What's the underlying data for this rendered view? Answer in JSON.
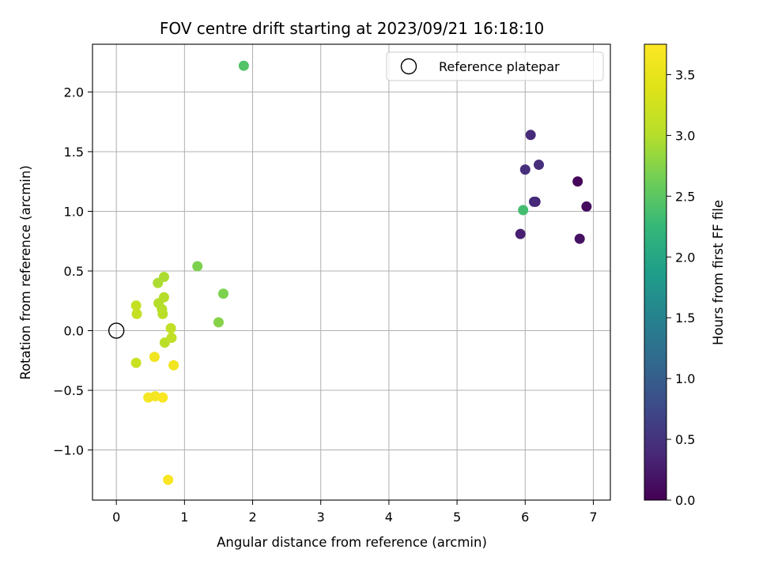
{
  "chart_data": {
    "type": "scatter",
    "title": "FOV centre drift starting at 2023/09/21 16:18:10",
    "xlabel": "Angular distance from reference (arcmin)",
    "ylabel": "Rotation from reference (arcmin)",
    "xlim": [
      -0.35,
      7.25
    ],
    "ylim": [
      -1.42,
      2.4
    ],
    "xticks": [
      0,
      1,
      2,
      3,
      4,
      5,
      6,
      7
    ],
    "xtick_labels": [
      "0",
      "1",
      "2",
      "3",
      "4",
      "5",
      "6",
      "7"
    ],
    "yticks": [
      -1.0,
      -0.5,
      0.0,
      0.5,
      1.0,
      1.5,
      2.0
    ],
    "ytick_labels": [
      "−1.0",
      "−0.5",
      "0.0",
      "0.5",
      "1.0",
      "1.5",
      "2.0"
    ],
    "grid": true,
    "legend": {
      "position": "top-right",
      "entries": [
        "Reference platepar"
      ]
    },
    "reference_point": {
      "x": 0.0,
      "y": 0.0,
      "label": "Reference platepar"
    },
    "colorbar": {
      "label": "Hours from first FF file",
      "colormap": "viridis",
      "range": [
        0.0,
        3.75
      ],
      "ticks": [
        0.0,
        0.5,
        1.0,
        1.5,
        2.0,
        2.5,
        3.0,
        3.5
      ],
      "tick_labels": [
        "0.0",
        "0.5",
        "1.0",
        "1.5",
        "2.0",
        "2.5",
        "3.0",
        "3.5"
      ]
    },
    "points": [
      {
        "x": 6.77,
        "y": 1.25,
        "hours": 0.05
      },
      {
        "x": 6.9,
        "y": 1.04,
        "hours": 0.1
      },
      {
        "x": 6.8,
        "y": 0.77,
        "hours": 0.15
      },
      {
        "x": 5.93,
        "y": 0.81,
        "hours": 0.3
      },
      {
        "x": 6.15,
        "y": 1.08,
        "hours": 0.35
      },
      {
        "x": 6.13,
        "y": 1.08,
        "hours": 0.4
      },
      {
        "x": 6.2,
        "y": 1.39,
        "hours": 0.45
      },
      {
        "x": 6.0,
        "y": 1.35,
        "hours": 0.45
      },
      {
        "x": 6.08,
        "y": 1.64,
        "hours": 0.4
      },
      {
        "x": 5.97,
        "y": 1.01,
        "hours": 2.35
      },
      {
        "x": 1.87,
        "y": 2.22,
        "hours": 2.45
      },
      {
        "x": 1.19,
        "y": 0.54,
        "hours": 2.7
      },
      {
        "x": 1.57,
        "y": 0.31,
        "hours": 2.7
      },
      {
        "x": 1.5,
        "y": 0.07,
        "hours": 2.75
      },
      {
        "x": 0.7,
        "y": 0.45,
        "hours": 2.95
      },
      {
        "x": 0.61,
        "y": 0.4,
        "hours": 2.95
      },
      {
        "x": 0.7,
        "y": 0.28,
        "hours": 3.0
      },
      {
        "x": 0.62,
        "y": 0.23,
        "hours": 3.0
      },
      {
        "x": 0.67,
        "y": 0.18,
        "hours": 3.0
      },
      {
        "x": 0.68,
        "y": 0.14,
        "hours": 3.05
      },
      {
        "x": 0.71,
        "y": -0.1,
        "hours": 3.05
      },
      {
        "x": 0.8,
        "y": 0.02,
        "hours": 3.1
      },
      {
        "x": 0.81,
        "y": -0.06,
        "hours": 3.1
      },
      {
        "x": 0.29,
        "y": 0.21,
        "hours": 3.15
      },
      {
        "x": 0.3,
        "y": 0.14,
        "hours": 3.15
      },
      {
        "x": 0.29,
        "y": -0.27,
        "hours": 3.2
      },
      {
        "x": 0.56,
        "y": -0.22,
        "hours": 3.6
      },
      {
        "x": 0.84,
        "y": -0.29,
        "hours": 3.6
      },
      {
        "x": 0.47,
        "y": -0.56,
        "hours": 3.65
      },
      {
        "x": 0.57,
        "y": -0.55,
        "hours": 3.65
      },
      {
        "x": 0.68,
        "y": -0.56,
        "hours": 3.7
      },
      {
        "x": 0.76,
        "y": -1.25,
        "hours": 3.7
      }
    ]
  }
}
